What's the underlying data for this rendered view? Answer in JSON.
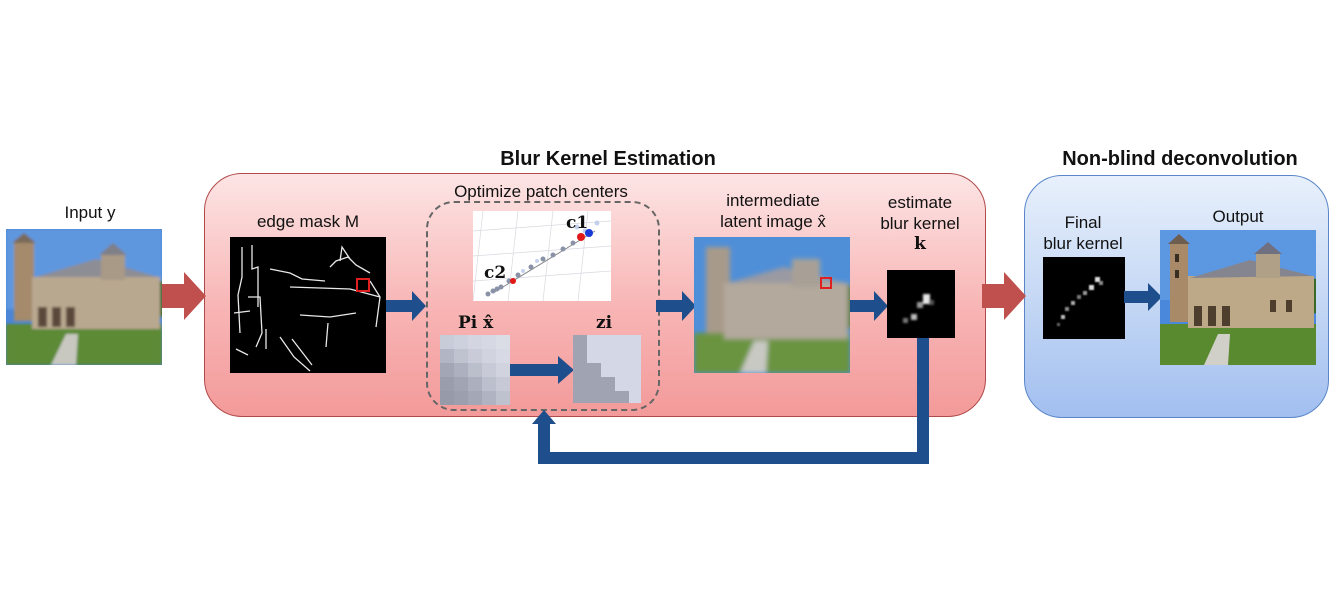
{
  "titles": {
    "blur_kernel_estimation": "Blur Kernel Estimation",
    "non_blind_deconvolution": "Non-blind deconvolution"
  },
  "labels": {
    "input": "Input y",
    "edge_mask": "edge mask M",
    "optimize_patch_centers": "Optimize patch centers",
    "c1": "c1",
    "c2": "c2",
    "pi_xhat": "Pi x̂",
    "zi": "zi",
    "intermediate_line1": "intermediate",
    "intermediate_line2": "latent image x̂",
    "estimate_line1": "estimate",
    "estimate_line2": "blur kernel",
    "estimate_line3": "k",
    "final_line1": "Final",
    "final_line2": "blur kernel",
    "output": "Output"
  },
  "colors": {
    "red_arrow": "#c0504d",
    "blue_arrow": "#1f4e8c",
    "highlight_box": "#e02020"
  }
}
